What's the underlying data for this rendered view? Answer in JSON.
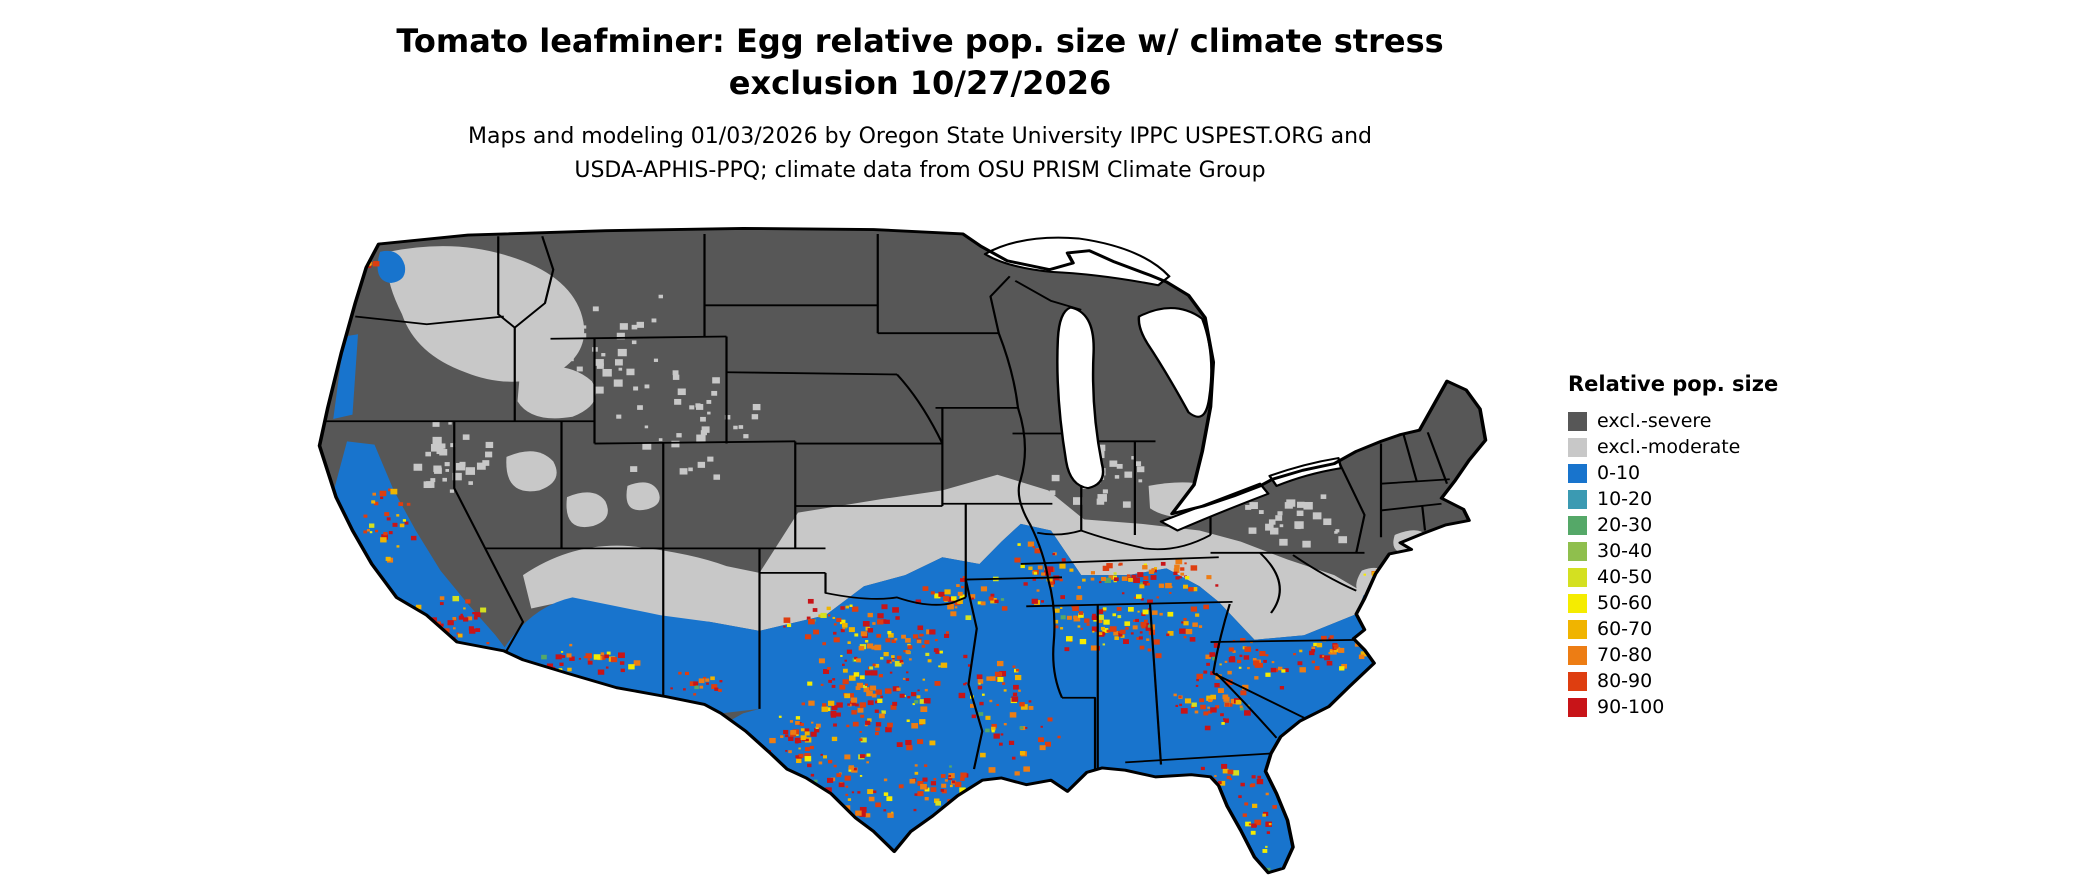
{
  "header": {
    "title_line1": "Tomato leafminer: Egg relative pop. size w/ climate stress",
    "title_line2": "exclusion 10/27/2026",
    "subtitle_line1": "Maps and modeling 01/03/2026 by Oregon State University IPPC USPEST.ORG and",
    "subtitle_line2": "USDA-APHIS-PPQ; climate data from OSU PRISM Climate Group"
  },
  "legend": {
    "title": "Relative pop. size",
    "entries": [
      {
        "label": "excl.-severe",
        "color": "#575757"
      },
      {
        "label": "excl.-moderate",
        "color": "#c8c8c8"
      },
      {
        "label": "0-10",
        "color": "#1874cd"
      },
      {
        "label": "10-20",
        "color": "#3b9ab2"
      },
      {
        "label": "20-30",
        "color": "#55a868"
      },
      {
        "label": "30-40",
        "color": "#8fbf4d"
      },
      {
        "label": "40-50",
        "color": "#d4e021"
      },
      {
        "label": "50-60",
        "color": "#f5ec00"
      },
      {
        "label": "60-70",
        "color": "#f0b400"
      },
      {
        "label": "70-80",
        "color": "#ed7d14"
      },
      {
        "label": "80-90",
        "color": "#de3e10"
      },
      {
        "label": "90-100",
        "color": "#c81418"
      }
    ]
  },
  "map": {
    "region": "Continental United States",
    "type": "raster category map with state borders"
  }
}
